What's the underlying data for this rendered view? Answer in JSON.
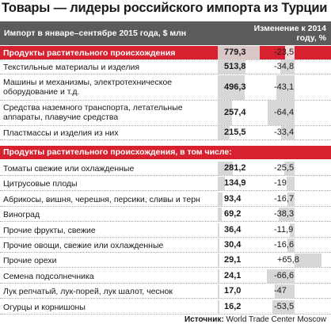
{
  "title": "Товары — лидеры российского импорта из Турции",
  "header": {
    "col1": "Импорт в январе–сентябре 2015 года, $ млн",
    "col2": "Изменение к 2014 году, %"
  },
  "source": {
    "prefix": "Источник:",
    "text": "World Trade Center Moscow"
  },
  "colors": {
    "highlight": "#d7212e",
    "header": "#5b5b5b",
    "bar": "#d7d7d7"
  },
  "chart_data": {
    "type": "table",
    "title": "Товары — лидеры российского импорта из Турции",
    "groups": [
      {
        "rows": [
          {
            "name": "Продукты растительного происхождения",
            "value": "779,3",
            "change": "-23,5",
            "v": 779.3,
            "c": -23.5,
            "highlight": true
          },
          {
            "name": "Текстильные материалы и изделия",
            "value": "513,8",
            "change": "-34,8",
            "v": 513.8,
            "c": -34.8
          },
          {
            "name": "Машины и механизмы, электротехническое оборудование и т.д.",
            "value": "496,3",
            "change": "-43,1",
            "v": 496.3,
            "c": -43.1
          },
          {
            "name": "Средства наземного транспорта, летательные аппараты, плавучие средства",
            "value": "257,4",
            "change": "-64,4",
            "v": 257.4,
            "c": -64.4
          },
          {
            "name": "Пластмассы и изделия из них",
            "value": "215,5",
            "change": "-33,4",
            "v": 215.5,
            "c": -33.4
          }
        ]
      },
      {
        "header": "Продукты растительного происхождения, в том числе:",
        "rows": [
          {
            "name": "Томаты свежие или охлажденные",
            "value": "281,2",
            "change": "-25,5",
            "v": 281.2,
            "c": -25.5
          },
          {
            "name": "Цитрусовые плоды",
            "value": "134,9",
            "change": "-19",
            "v": 134.9,
            "c": -19
          },
          {
            "name": "Абрикосы, вишня, черешня, персики, сливы и терн",
            "value": "93,4",
            "change": "-16,7",
            "v": 93.4,
            "c": -16.7
          },
          {
            "name": "Виноград",
            "value": "69,2",
            "change": "-38,3",
            "v": 69.2,
            "c": -38.3
          },
          {
            "name": "Прочие фрукты, свежие",
            "value": "36,4",
            "change": "-11,9",
            "v": 36.4,
            "c": -11.9
          },
          {
            "name": "Прочие овощи, свежие или охлажденные",
            "value": "30,4",
            "change": "-16,6",
            "v": 30.4,
            "c": -16.6
          },
          {
            "name": "Прочие орехи",
            "value": "29,1",
            "change": "+65,8",
            "v": 29.1,
            "c": 65.8
          },
          {
            "name": "Семена подсолнечника",
            "value": "24,1",
            "change": "-66,6",
            "v": 24.1,
            "c": -66.6
          },
          {
            "name": "Лук репчатый, лук-порей, лук шалот, чеснок",
            "value": "17,0",
            "change": "-47",
            "v": 17.0,
            "c": -47
          },
          {
            "name": "Огурцы и корнишоны",
            "value": "16,2",
            "change": "-53,5",
            "v": 16.2,
            "c": -53.5
          }
        ]
      }
    ]
  }
}
